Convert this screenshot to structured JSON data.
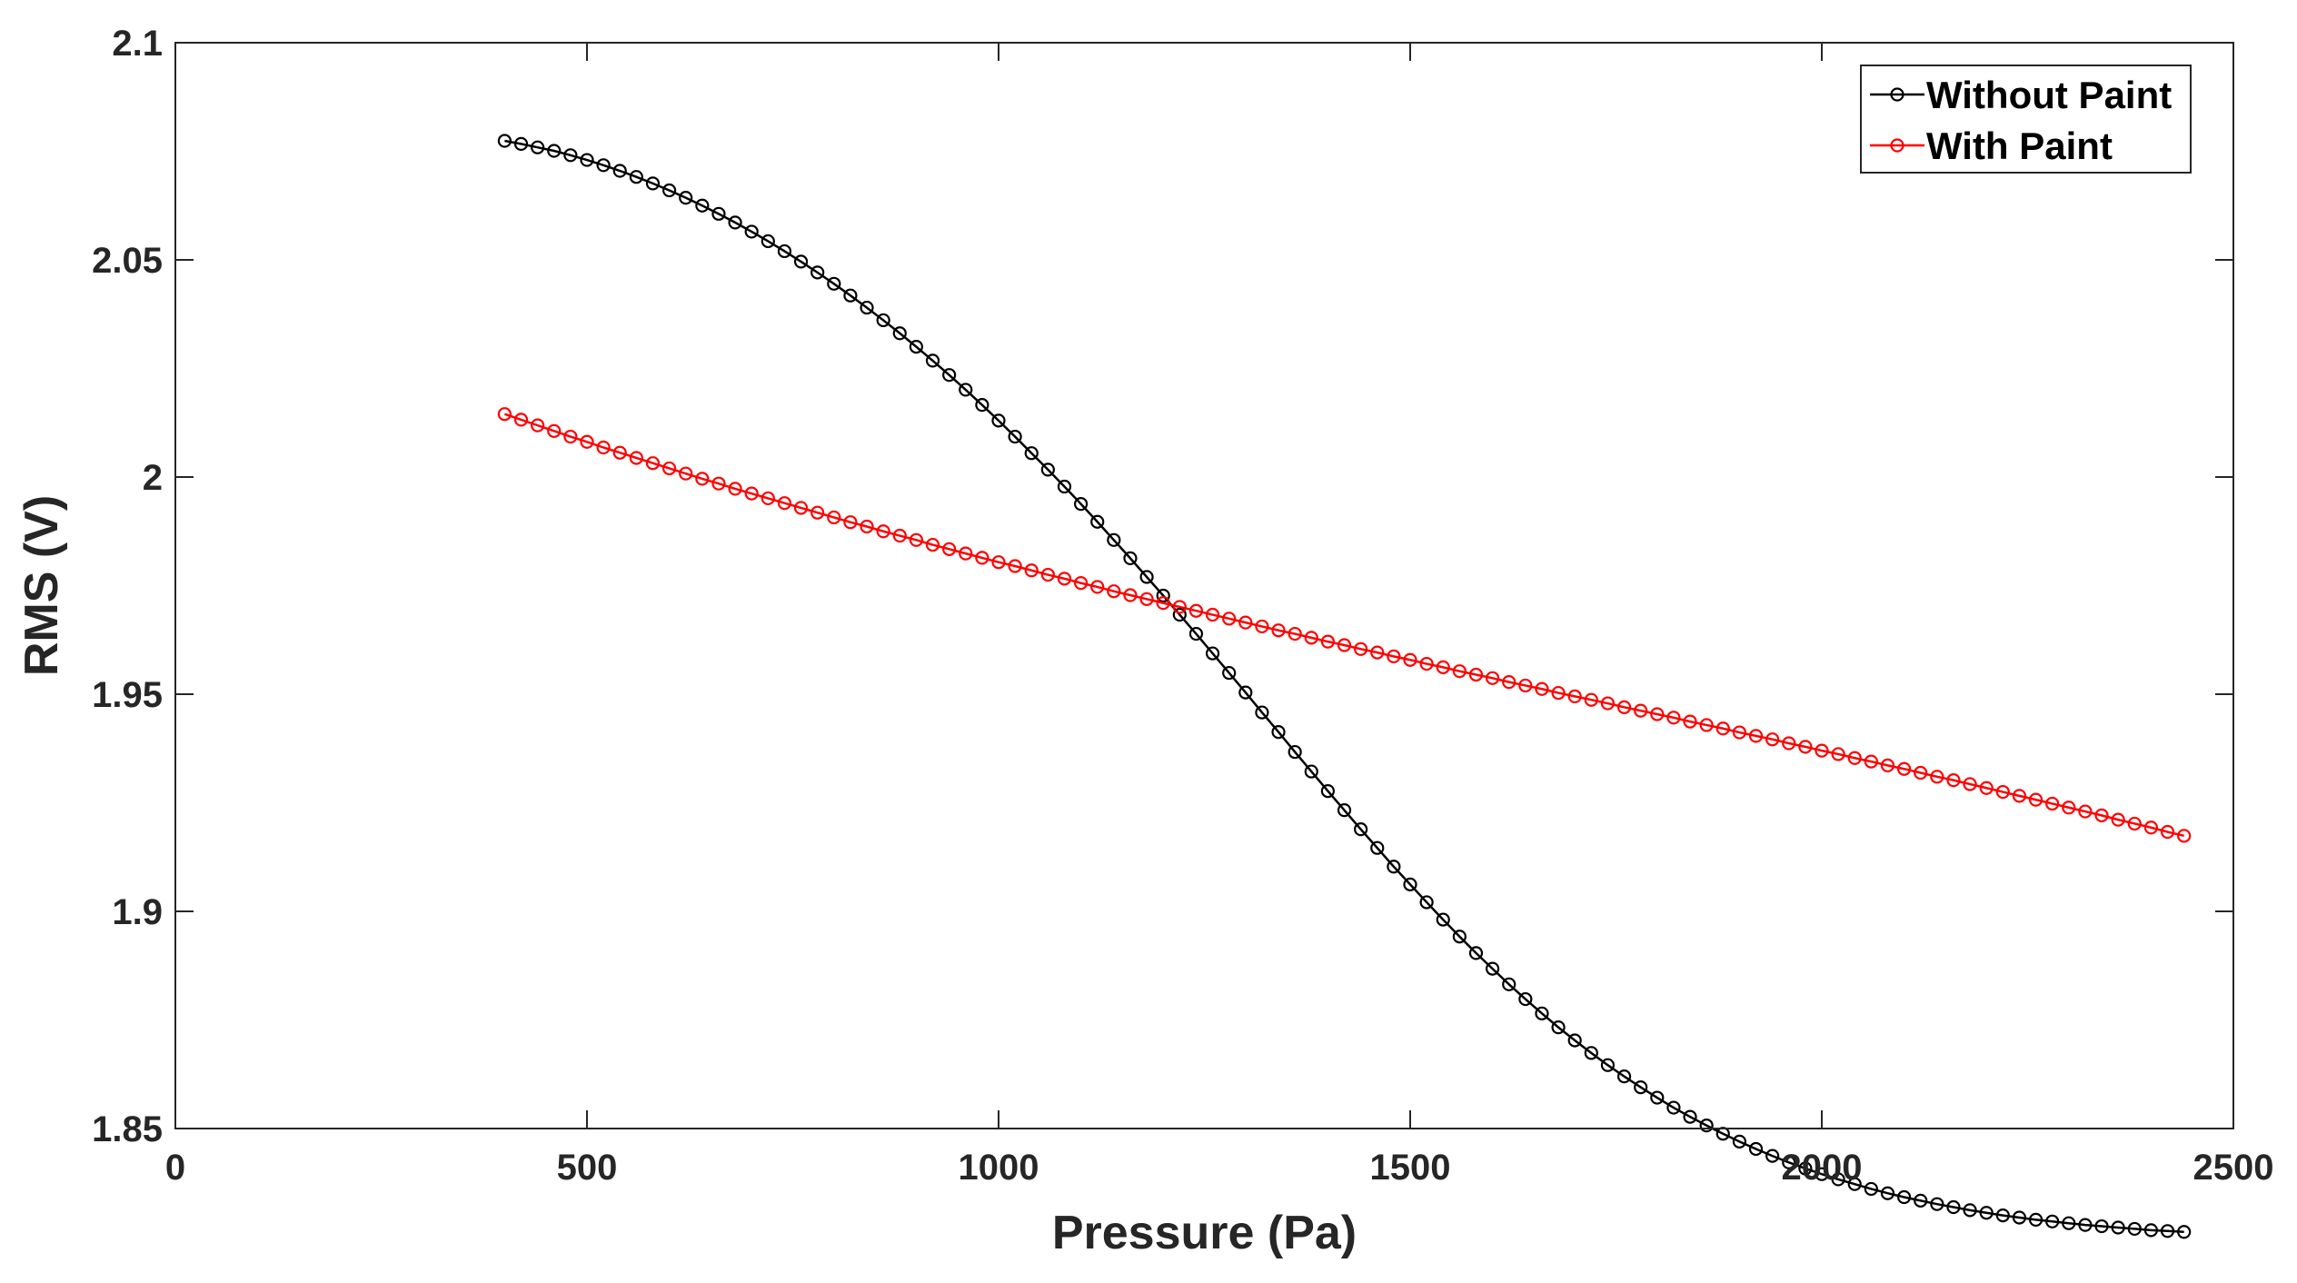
{
  "chart_data": {
    "type": "line",
    "title": "",
    "xlabel": "Pressure (Pa)",
    "ylabel": "RMS (V)",
    "xlim": [
      0,
      2500
    ],
    "ylim": [
      1.85,
      2.1
    ],
    "xticks": [
      0,
      500,
      1000,
      1500,
      2000,
      2500
    ],
    "yticks": [
      1.85,
      1.9,
      1.95,
      2,
      2.05,
      2.1
    ],
    "xtick_labels": [
      "0",
      "500",
      "1000",
      "1500",
      "2000",
      "2500"
    ],
    "ytick_labels": [
      "1.85",
      "1.9",
      "1.95",
      "2",
      "2.05",
      "2.1"
    ],
    "grid": false,
    "legend_position": "top-right",
    "marker": "circle-open",
    "x": [
      400,
      420,
      440,
      460,
      480,
      500,
      520,
      540,
      560,
      580,
      600,
      620,
      640,
      660,
      680,
      700,
      720,
      740,
      760,
      780,
      800,
      820,
      840,
      860,
      880,
      900,
      920,
      940,
      960,
      980,
      1000,
      1020,
      1040,
      1060,
      1080,
      1100,
      1120,
      1140,
      1160,
      1180,
      1200,
      1220,
      1240,
      1260,
      1280,
      1300,
      1320,
      1340,
      1360,
      1380,
      1400,
      1420,
      1440,
      1460,
      1480,
      1500,
      1520,
      1540,
      1560,
      1580,
      1600,
      1620,
      1640,
      1660,
      1680,
      1700,
      1720,
      1740,
      1760,
      1780,
      1800,
      1820,
      1840,
      1860,
      1880,
      1900,
      1920,
      1940,
      1960,
      1980,
      2000,
      2020,
      2040,
      2060,
      2080,
      2100,
      2120,
      2140,
      2160,
      2180,
      2200,
      2220,
      2240,
      2260,
      2280,
      2300,
      2320,
      2340,
      2360,
      2380,
      2400,
      2420,
      2440
    ],
    "series": [
      {
        "name": "Without Paint",
        "color": "#000000",
        "values": [
          2.0774,
          2.0767,
          2.0759,
          2.0751,
          2.0741,
          2.073,
          2.0718,
          2.0705,
          2.0691,
          2.0676,
          2.066,
          2.0643,
          2.0625,
          2.0606,
          2.0586,
          2.0565,
          2.0543,
          2.052,
          2.0496,
          2.0471,
          2.0445,
          2.0418,
          2.039,
          2.0361,
          2.0331,
          2.03,
          2.0268,
          2.0235,
          2.0201,
          2.0166,
          2.013,
          2.0093,
          2.0055,
          2.0017,
          1.9978,
          1.9938,
          1.9897,
          1.9855,
          1.9813,
          1.977,
          1.9727,
          1.9683,
          1.9639,
          1.9594,
          1.9549,
          1.9504,
          1.9458,
          1.9413,
          1.9367,
          1.9322,
          1.9277,
          1.9233,
          1.9189,
          1.9146,
          1.9103,
          1.9062,
          1.9021,
          1.8981,
          1.8942,
          1.8904,
          1.8868,
          1.8832,
          1.8798,
          1.8765,
          1.8733,
          1.8703,
          1.8674,
          1.8646,
          1.862,
          1.8595,
          1.8571,
          1.8548,
          1.8527,
          1.8507,
          1.8488,
          1.847,
          1.8453,
          1.8437,
          1.8422,
          1.8408,
          1.8395,
          1.8383,
          1.8372,
          1.8361,
          1.8351,
          1.8342,
          1.8334,
          1.8326,
          1.8319,
          1.8312,
          1.8306,
          1.83,
          1.8295,
          1.829,
          1.8286,
          1.8282,
          1.8278,
          1.8275,
          1.8272,
          1.8269,
          1.8266,
          1.8264,
          1.8262
        ]
      },
      {
        "name": "With Paint",
        "color": "#ff0000",
        "values": [
          2.0145,
          2.0132,
          2.0119,
          2.0106,
          2.0093,
          2.0081,
          2.0068,
          2.0056,
          2.0044,
          2.0032,
          2.002,
          2.0008,
          1.9996,
          1.9985,
          1.9973,
          1.9962,
          1.9951,
          1.994,
          1.9929,
          1.9918,
          1.9907,
          1.9896,
          1.9886,
          1.9875,
          1.9865,
          1.9855,
          1.9844,
          1.9834,
          1.9824,
          1.9814,
          1.9804,
          1.9795,
          1.9785,
          1.9775,
          1.9766,
          1.9756,
          1.9747,
          1.9737,
          1.9728,
          1.9719,
          1.971,
          1.9701,
          1.9692,
          1.9683,
          1.9674,
          1.9665,
          1.9656,
          1.9647,
          1.9639,
          1.963,
          1.9621,
          1.9613,
          1.9604,
          1.9596,
          1.9587,
          1.9579,
          1.957,
          1.9562,
          1.9553,
          1.9545,
          1.9537,
          1.9528,
          1.952,
          1.9512,
          1.9503,
          1.9495,
          1.9487,
          1.9479,
          1.947,
          1.9462,
          1.9454,
          1.9446,
          1.9437,
          1.9429,
          1.9421,
          1.9412,
          1.9404,
          1.9396,
          1.9387,
          1.9379,
          1.937,
          1.9362,
          1.9353,
          1.9345,
          1.9336,
          1.9328,
          1.9319,
          1.931,
          1.9302,
          1.9293,
          1.9284,
          1.9275,
          1.9266,
          1.9257,
          1.9248,
          1.9239,
          1.923,
          1.9221,
          1.9211,
          1.9202,
          1.9193,
          1.9183,
          1.9174
        ]
      }
    ]
  }
}
